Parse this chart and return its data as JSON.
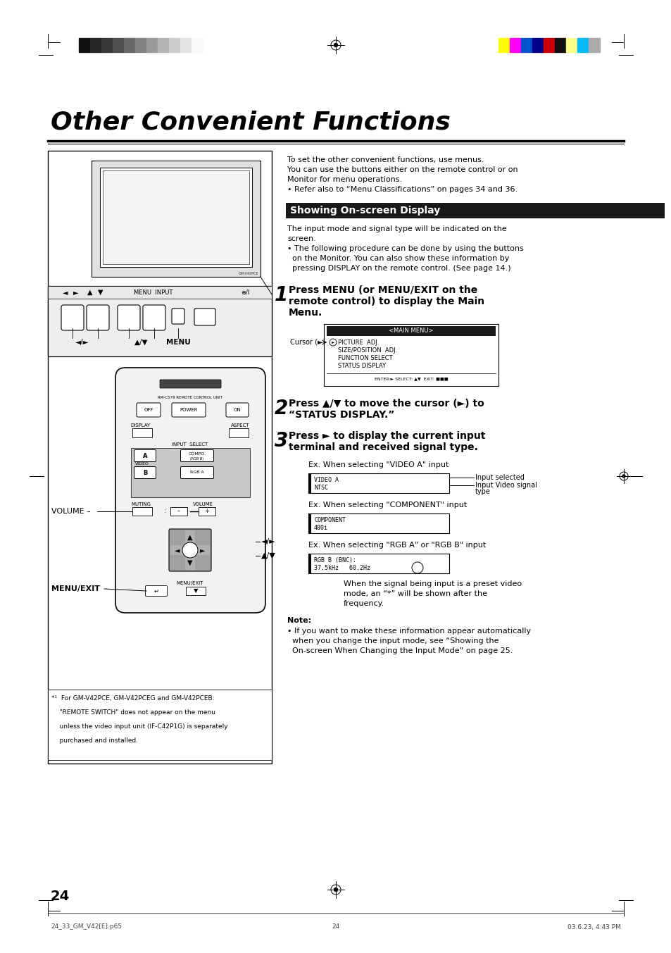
{
  "bg_color": "#ffffff",
  "title": "Other Convenient Functions",
  "title_fontsize": 26,
  "section_header": "Showing On-screen Display",
  "section_header_bg": "#1a1a1a",
  "section_header_color": "#ffffff",
  "grayscale_colors": [
    "#111111",
    "#252525",
    "#393939",
    "#505050",
    "#686868",
    "#828282",
    "#9a9a9a",
    "#b4b4b4",
    "#cccccc",
    "#e4e4e4",
    "#f8f8f8"
  ],
  "color_bars": [
    "#ffff00",
    "#ff00ff",
    "#0055cc",
    "#000088",
    "#cc0000",
    "#111111",
    "#ffff88",
    "#00bbff",
    "#aaaaaa"
  ],
  "page_number": "24",
  "footer_left": "24_33_GM_V42[E].p65",
  "footer_center": "24",
  "footer_right": "03.6.23, 4:43 PM"
}
